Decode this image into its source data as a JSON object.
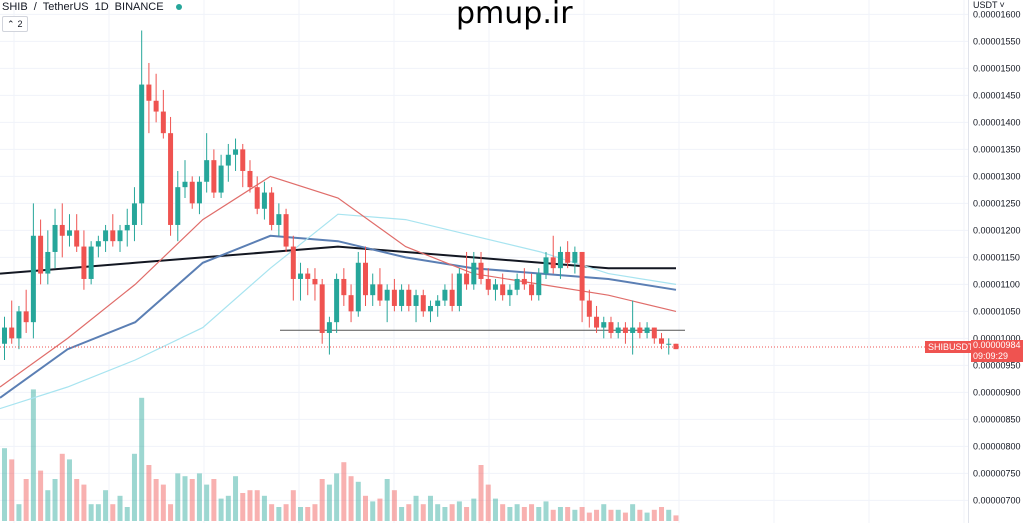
{
  "header": {
    "symbol": "SHIB",
    "separator": "/",
    "quote": "TetherUS",
    "interval": "1D",
    "exchange": "BINANCE",
    "live_dot_color": "#26a69a",
    "indicators_count": "2",
    "indicators_icon": "chevron-up-icon"
  },
  "watermark": "pmup.ir",
  "currency_selector": {
    "label": "USDT",
    "icon": "chevron-down-icon"
  },
  "price_axis": {
    "ticks": [
      "0.00001600",
      "0.00001550",
      "0.00001500",
      "0.00001450",
      "0.00001400",
      "0.00001350",
      "0.00001300",
      "0.00001250",
      "0.00001200",
      "0.00001150",
      "0.00001100",
      "0.00001050",
      "0.00001000",
      "0.00000950",
      "0.00000900",
      "0.00000850",
      "0.00000800",
      "0.00000750",
      "0.00000700"
    ]
  },
  "last_price": {
    "symbol": "SHIBUSDT",
    "value": "0.00000984",
    "countdown": "09:09:29",
    "color": "#ef5350"
  },
  "chart_data": {
    "type": "candlestick",
    "title": "",
    "ylim": [
      6.7e-06,
      1.61e-05
    ],
    "up_color": "#26a69a",
    "down_color": "#ef5350",
    "ohlc": [
      [
        9.9e-06,
        1.04e-05,
        9.6e-06,
        1.02e-05
      ],
      [
        1.02e-05,
        1.07e-05,
        9.9e-06,
        1e-05
      ],
      [
        1e-05,
        1.06e-05,
        9.8e-06,
        1.05e-05
      ],
      [
        1.05e-05,
        1.09e-05,
        1.01e-05,
        1.03e-05
      ],
      [
        1.03e-05,
        1.25e-05,
        1e-05,
        1.19e-05
      ],
      [
        1.19e-05,
        1.22e-05,
        1.1e-05,
        1.12e-05
      ],
      [
        1.12e-05,
        1.2e-05,
        1.1e-05,
        1.16e-05
      ],
      [
        1.16e-05,
        1.24e-05,
        1.13e-05,
        1.21e-05
      ],
      [
        1.21e-05,
        1.25e-05,
        1.15e-05,
        1.19e-05
      ],
      [
        1.19e-05,
        1.23e-05,
        1.17e-05,
        1.2e-05
      ],
      [
        1.2e-05,
        1.23e-05,
        1.16e-05,
        1.17e-05
      ],
      [
        1.17e-05,
        1.2e-05,
        1.09e-05,
        1.11e-05
      ],
      [
        1.11e-05,
        1.18e-05,
        1.1e-05,
        1.17e-05
      ],
      [
        1.17e-05,
        1.19e-05,
        1.15e-05,
        1.18e-05
      ],
      [
        1.18e-05,
        1.21e-05,
        1.16e-05,
        1.2e-05
      ],
      [
        1.2e-05,
        1.23e-05,
        1.17e-05,
        1.18e-05
      ],
      [
        1.18e-05,
        1.21e-05,
        1.16e-05,
        1.2e-05
      ],
      [
        1.2e-05,
        1.24e-05,
        1.17e-05,
        1.21e-05
      ],
      [
        1.21e-05,
        1.28e-05,
        1.18e-05,
        1.25e-05
      ],
      [
        1.25e-05,
        1.57e-05,
        1.21e-05,
        1.47e-05
      ],
      [
        1.47e-05,
        1.51e-05,
        1.38e-05,
        1.44e-05
      ],
      [
        1.44e-05,
        1.49e-05,
        1.4e-05,
        1.42e-05
      ],
      [
        1.42e-05,
        1.46e-05,
        1.37e-05,
        1.38e-05
      ],
      [
        1.38e-05,
        1.41e-05,
        1.19e-05,
        1.21e-05
      ],
      [
        1.21e-05,
        1.31e-05,
        1.18e-05,
        1.28e-05
      ],
      [
        1.28e-05,
        1.33e-05,
        1.26e-05,
        1.29e-05
      ],
      [
        1.29e-05,
        1.3e-05,
        1.24e-05,
        1.25e-05
      ],
      [
        1.25e-05,
        1.3e-05,
        1.23e-05,
        1.29e-05
      ],
      [
        1.29e-05,
        1.38e-05,
        1.27e-05,
        1.33e-05
      ],
      [
        1.33e-05,
        1.35e-05,
        1.26e-05,
        1.27e-05
      ],
      [
        1.27e-05,
        1.34e-05,
        1.26e-05,
        1.32e-05
      ],
      [
        1.32e-05,
        1.36e-05,
        1.29e-05,
        1.34e-05
      ],
      [
        1.34e-05,
        1.37e-05,
        1.31e-05,
        1.35e-05
      ],
      [
        1.35e-05,
        1.36e-05,
        1.28e-05,
        1.31e-05
      ],
      [
        1.31e-05,
        1.33e-05,
        1.27e-05,
        1.28e-05
      ],
      [
        1.28e-05,
        1.3e-05,
        1.23e-05,
        1.24e-05
      ],
      [
        1.24e-05,
        1.29e-05,
        1.22e-05,
        1.27e-05
      ],
      [
        1.27e-05,
        1.28e-05,
        1.2e-05,
        1.21e-05
      ],
      [
        1.21e-05,
        1.25e-05,
        1.19e-05,
        1.23e-05
      ],
      [
        1.23e-05,
        1.24e-05,
        1.16e-05,
        1.17e-05
      ],
      [
        1.17e-05,
        1.19e-05,
        1.07e-05,
        1.11e-05
      ],
      [
        1.11e-05,
        1.14e-05,
        1.07e-05,
        1.12e-05
      ],
      [
        1.12e-05,
        1.13e-05,
        1.08e-05,
        1.11e-05
      ],
      [
        1.11e-05,
        1.13e-05,
        1.07e-05,
        1.1e-05
      ],
      [
        1.1e-05,
        1.11e-05,
        9.9e-06,
        1.01e-05
      ],
      [
        1.01e-05,
        1.04e-05,
        9.7e-06,
        1.03e-05
      ],
      [
        1.03e-05,
        1.12e-05,
        1.01e-05,
        1.11e-05
      ],
      [
        1.11e-05,
        1.13e-05,
        1.06e-05,
        1.08e-05
      ],
      [
        1.08e-05,
        1.1e-05,
        1.03e-05,
        1.05e-05
      ],
      [
        1.05e-05,
        1.16e-05,
        1.04e-05,
        1.14e-05
      ],
      [
        1.14e-05,
        1.17e-05,
        1.06e-05,
        1.08e-05
      ],
      [
        1.08e-05,
        1.12e-05,
        1.06e-05,
        1.1e-05
      ],
      [
        1.1e-05,
        1.13e-05,
        1.06e-05,
        1.07e-05
      ],
      [
        1.07e-05,
        1.1e-05,
        1.03e-05,
        1.09e-05
      ],
      [
        1.09e-05,
        1.11e-05,
        1.05e-05,
        1.06e-05
      ],
      [
        1.06e-05,
        1.1e-05,
        1.05e-05,
        1.09e-05
      ],
      [
        1.09e-05,
        1.1e-05,
        1.05e-05,
        1.06e-05
      ],
      [
        1.06e-05,
        1.09e-05,
        1.03e-05,
        1.08e-05
      ],
      [
        1.08e-05,
        1.09e-05,
        1.04e-05,
        1.05e-05
      ],
      [
        1.05e-05,
        1.07e-05,
        1.03e-05,
        1.06e-05
      ],
      [
        1.06e-05,
        1.08e-05,
        1.04e-05,
        1.07e-05
      ],
      [
        1.07e-05,
        1.1e-05,
        1.06e-05,
        1.09e-05
      ],
      [
        1.09e-05,
        1.12e-05,
        1.05e-05,
        1.06e-05
      ],
      [
        1.06e-05,
        1.13e-05,
        1.05e-05,
        1.12e-05
      ],
      [
        1.12e-05,
        1.16e-05,
        1.09e-05,
        1.1e-05
      ],
      [
        1.1e-05,
        1.16e-05,
        1.09e-05,
        1.14e-05
      ],
      [
        1.14e-05,
        1.16e-05,
        1.1e-05,
        1.11e-05
      ],
      [
        1.11e-05,
        1.13e-05,
        1.08e-05,
        1.09e-05
      ],
      [
        1.09e-05,
        1.11e-05,
        1.07e-05,
        1.1e-05
      ],
      [
        1.1e-05,
        1.12e-05,
        1.07e-05,
        1.08e-05
      ],
      [
        1.08e-05,
        1.1e-05,
        1.06e-05,
        1.09e-05
      ],
      [
        1.09e-05,
        1.12e-05,
        1.08e-05,
        1.11e-05
      ],
      [
        1.11e-05,
        1.13e-05,
        1.09e-05,
        1.1e-05
      ],
      [
        1.1e-05,
        1.12e-05,
        1.07e-05,
        1.08e-05
      ],
      [
        1.08e-05,
        1.13e-05,
        1.07e-05,
        1.12e-05
      ],
      [
        1.12e-05,
        1.16e-05,
        1.11e-05,
        1.15e-05
      ],
      [
        1.15e-05,
        1.19e-05,
        1.12e-05,
        1.13e-05
      ],
      [
        1.13e-05,
        1.17e-05,
        1.11e-05,
        1.16e-05
      ],
      [
        1.16e-05,
        1.18e-05,
        1.13e-05,
        1.14e-05
      ],
      [
        1.14e-05,
        1.17e-05,
        1.12e-05,
        1.16e-05
      ],
      [
        1.16e-05,
        1.16e-05,
        1.03e-05,
        1.07e-05
      ],
      [
        1.07e-05,
        1.09e-05,
        1.02e-05,
        1.04e-05
      ],
      [
        1.04e-05,
        1.06e-05,
        1.01e-05,
        1.02e-05
      ],
      [
        1.02e-05,
        1.04e-05,
        1e-05,
        1.03e-05
      ],
      [
        1.03e-05,
        1.04e-05,
        1e-05,
        1.01e-05
      ],
      [
        1.01e-05,
        1.03e-05,
        1e-05,
        1.02e-05
      ],
      [
        1.02e-05,
        1.03e-05,
        9.9e-06,
        1.01e-05
      ],
      [
        1.01e-05,
        1.07e-05,
        9.7e-06,
        1.02e-05
      ],
      [
        1.02e-05,
        1.03e-05,
        1e-05,
        1.01e-05
      ],
      [
        1.01e-05,
        1.03e-05,
        1e-05,
        1.02e-05
      ],
      [
        1.02e-05,
        1.02e-05,
        9.9e-06,
        1e-05
      ],
      [
        1e-05,
        1.01e-05,
        9.8e-06,
        9.9e-06
      ],
      [
        9.9e-06,
        1e-05,
        9.7e-06,
        9.9e-06
      ],
      [
        9.9e-06,
        9.9e-06,
        9.8e-06,
        9.8e-06
      ]
    ],
    "volume": [
      26,
      22,
      6,
      15,
      47,
      18,
      11,
      15,
      24,
      22,
      15,
      13,
      6,
      6,
      11,
      6,
      9,
      5,
      24,
      44,
      20,
      15,
      13,
      6,
      17,
      16,
      15,
      17,
      13,
      15,
      8,
      9,
      16,
      10,
      11,
      11,
      9,
      6,
      5,
      6,
      11,
      5,
      5,
      6,
      15,
      13,
      17,
      21,
      16,
      14,
      9,
      7,
      8,
      15,
      11,
      5,
      6,
      9,
      6,
      9,
      6,
      5,
      6,
      7,
      5,
      8,
      20,
      13,
      8,
      6,
      5,
      6,
      5,
      6,
      5,
      7,
      4,
      5,
      5,
      4,
      5,
      3,
      4,
      6,
      4,
      4,
      3,
      6,
      4,
      3,
      4,
      5,
      4,
      2
    ],
    "support_level": 1.015e-05,
    "moving_averages": [
      {
        "color": "#131722",
        "values": [
          1.12e-05,
          1.13e-05,
          1.14e-05,
          1.15e-05,
          1.16e-05,
          1.17e-05,
          1.16e-05,
          1.15e-05,
          1.14e-05,
          1.13e-05,
          1.13e-05
        ]
      },
      {
        "color": "#5b7fb4",
        "values": [
          8.9e-06,
          9.8e-06,
          1.03e-05,
          1.14e-05,
          1.19e-05,
          1.18e-05,
          1.15e-05,
          1.13e-05,
          1.12e-05,
          1.11e-05,
          1.09e-05
        ]
      },
      {
        "color": "#a8e4f0",
        "values": [
          8.7e-06,
          9.1e-06,
          9.6e-06,
          1.02e-05,
          1.13e-05,
          1.23e-05,
          1.22e-05,
          1.19e-05,
          1.16e-05,
          1.12e-05,
          1.1e-05
        ]
      },
      {
        "color": "#e06d6a",
        "values": [
          9.1e-06,
          1e-05,
          1.1e-05,
          1.22e-05,
          1.3e-05,
          1.26e-05,
          1.17e-05,
          1.12e-05,
          1.1e-05,
          1.08e-05,
          1.05e-05
        ]
      }
    ]
  }
}
